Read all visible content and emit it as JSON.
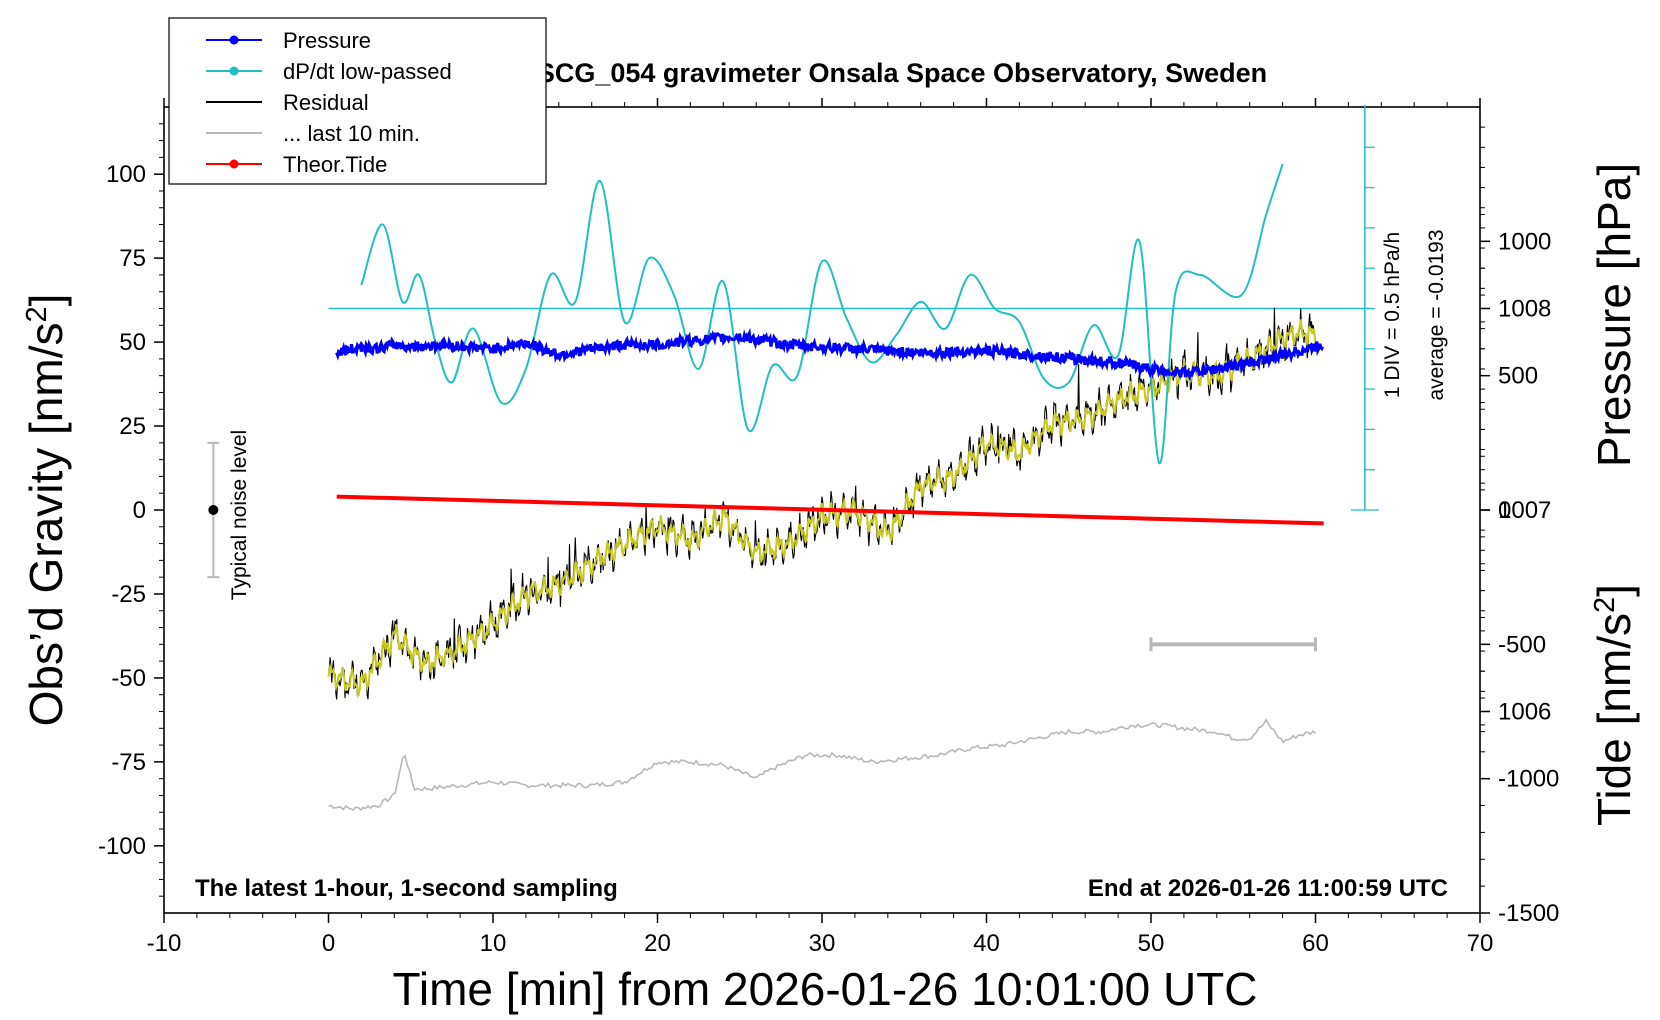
{
  "chart_data": {
    "type": "line",
    "title": "SCG_054 gravimeter Onsala Space Observatory, Sweden",
    "xlabel": "Time [min] from 2026-01-26 10:01:00 UTC",
    "ylabel_left_main": "Obs’d Gravity [nm/s",
    "ylabel_left_sup": "2",
    "ylabel_left_close": "]",
    "ylabel_pressure": "Pressure [hPa]",
    "ylabel_tide_main": "Tide [nm/s",
    "ylabel_tide_sup": "2",
    "ylabel_tide_close": "]",
    "xlim": [
      -10,
      70
    ],
    "ylim_gravity": [
      -120,
      120
    ],
    "pressure_range": [
      1005.0,
      1009.0
    ],
    "tide_range": [
      -1500,
      1500
    ],
    "x_ticks": [
      "-10",
      "0",
      "10",
      "20",
      "30",
      "40",
      "50",
      "60",
      "70"
    ],
    "gravity_ticks": [
      "100",
      "75",
      "50",
      "25",
      "0",
      "-25",
      "-50",
      "-75",
      "-100"
    ],
    "pressure_ticks": [
      "1008",
      "1007",
      "1006"
    ],
    "tide_ticks": [
      "1000",
      "500",
      "0",
      "-500",
      "-1000",
      "-1500"
    ],
    "legend": [
      {
        "label": "Pressure",
        "color": "#0000ff",
        "marker": true
      },
      {
        "label": "dP/dt low-passed",
        "color": "#20c0c0",
        "marker": true
      },
      {
        "label": "Residual",
        "color": "#000000",
        "marker": false
      },
      {
        "label": "... last 10 min.",
        "color": "#b8b8b8",
        "marker": false
      },
      {
        "label": "Theor.Tide",
        "color": "#ff0000",
        "marker": true
      }
    ],
    "annotations": {
      "noise_label": "Typical noise level",
      "scale_label": "1 DIV = 0.5 hPa/h",
      "average_label": "average = -0.0193",
      "bottom_left": "The latest 1-hour, 1-second sampling",
      "bottom_right": "End at 2026-01-26 11:00:59 UTC"
    },
    "noise_bar": {
      "x": -7,
      "center": 0,
      "half_range": 20
    },
    "last10_bar": {
      "x_start": 50,
      "x_end": 60,
      "level": -40
    },
    "dpdt_zero_level": 60,
    "series": [
      {
        "name": "Pressure",
        "color": "#0000ff",
        "axis": "pressure",
        "x": [
          0.5,
          2,
          3,
          4,
          5,
          7,
          10,
          12,
          14,
          16,
          18,
          20,
          22,
          25,
          28,
          32,
          36,
          40,
          44,
          48,
          50,
          52,
          54,
          56,
          58,
          60.5
        ],
        "values": [
          1007.78,
          1007.81,
          1007.8,
          1007.82,
          1007.81,
          1007.82,
          1007.8,
          1007.83,
          1007.77,
          1007.8,
          1007.82,
          1007.82,
          1007.84,
          1007.86,
          1007.82,
          1007.8,
          1007.78,
          1007.79,
          1007.76,
          1007.73,
          1007.7,
          1007.68,
          1007.7,
          1007.73,
          1007.77,
          1007.82
        ]
      },
      {
        "name": "dP/dt low-passed",
        "color": "#20c0c0",
        "axis": "gravity",
        "x": [
          2,
          3.3,
          4.5,
          5.5,
          6.5,
          7.5,
          8.8,
          10.5,
          12,
          13.5,
          15,
          16.5,
          18,
          19.5,
          21,
          22.5,
          24,
          25.5,
          27,
          28.5,
          30,
          31.5,
          33,
          34.5,
          36,
          37.5,
          39,
          40.5,
          42,
          43.5,
          45,
          46.5,
          48,
          49.3,
          50.5,
          51.5,
          53,
          55.5,
          57,
          58
        ],
        "values": [
          67,
          85,
          62,
          70,
          50,
          38,
          54,
          32,
          42,
          70,
          62,
          98,
          56,
          75,
          64,
          42,
          68,
          24,
          43,
          40,
          74,
          57,
          44,
          52,
          62,
          54,
          70,
          60,
          56,
          39,
          38,
          55,
          46,
          80,
          14,
          65,
          70,
          64,
          88,
          103
        ]
      },
      {
        "name": "Residual",
        "color": "#000000",
        "axis": "gravity",
        "x": [
          0,
          2,
          3,
          4,
          5,
          6,
          8,
          10,
          12,
          14,
          16,
          18,
          20,
          22,
          24,
          26,
          28,
          30,
          32,
          34,
          36,
          38,
          40,
          42,
          44,
          46,
          48,
          50,
          52,
          54,
          56,
          58,
          59,
          60
        ],
        "values": [
          -49,
          -52,
          -45,
          -37,
          -42,
          -46,
          -41,
          -34,
          -25,
          -22,
          -16,
          -10,
          -5,
          -9,
          -2,
          -13,
          -10,
          -2,
          0,
          -7,
          7,
          10,
          20,
          17,
          26,
          27,
          33,
          36,
          41,
          40,
          45,
          51,
          53,
          52
        ]
      },
      {
        "name": "... last 10 min.",
        "color": "#b8b8b8",
        "axis": "gravity",
        "x": [
          0,
          1.5,
          3,
          4,
          4.6,
          5.2,
          6,
          8,
          10,
          12,
          14,
          16,
          18,
          20,
          22,
          24,
          26,
          27,
          29,
          31,
          33,
          35,
          37,
          39,
          41,
          43,
          45,
          47,
          49,
          50.5,
          52,
          54,
          55,
          56,
          57,
          58,
          59,
          60
        ],
        "values": [
          -88,
          -89,
          -88,
          -85,
          -72,
          -83,
          -83,
          -82,
          -81,
          -82,
          -82,
          -82,
          -81,
          -75,
          -75,
          -76,
          -80,
          -77,
          -73,
          -73,
          -75,
          -74,
          -73,
          -71,
          -70,
          -68,
          -66,
          -66,
          -64,
          -64,
          -65,
          -66,
          -68,
          -68,
          -63,
          -69,
          -67,
          -66
        ]
      },
      {
        "name": "Theor.Tide",
        "color": "#ff0000",
        "axis": "tide",
        "x": [
          0.5,
          60.5
        ],
        "values": [
          50,
          -50
        ]
      }
    ]
  }
}
